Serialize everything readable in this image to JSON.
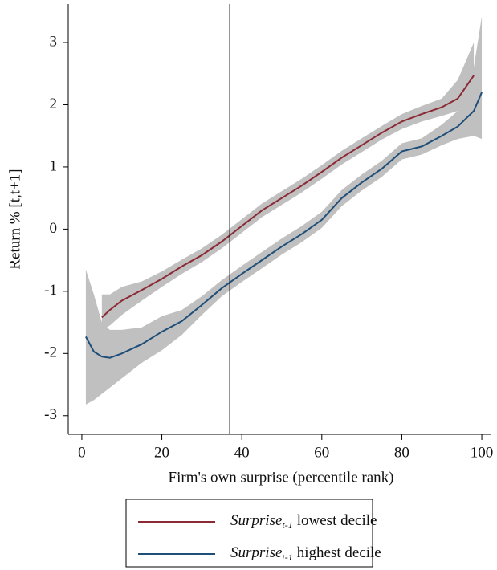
{
  "chart_data": {
    "type": "line",
    "xlabel": "Firm's own surprise (percentile rank)",
    "ylabel": "Return % [t,t+1]",
    "x": [
      1,
      3,
      5,
      7,
      10,
      15,
      20,
      25,
      30,
      35,
      40,
      45,
      50,
      55,
      60,
      65,
      70,
      75,
      80,
      85,
      90,
      94,
      98,
      100
    ],
    "series": [
      {
        "name": {
          "italic": "Surprise",
          "sub": "t-1",
          "rest": "lowest decile"
        },
        "color": "#8b2a35",
        "values": [
          null,
          null,
          -1.42,
          -1.3,
          -1.15,
          -0.98,
          -0.8,
          -0.6,
          -0.42,
          -0.2,
          0.05,
          0.3,
          0.5,
          0.7,
          0.92,
          1.15,
          1.35,
          1.55,
          1.73,
          1.85,
          1.96,
          2.1,
          2.47,
          null
        ],
        "lower": [
          null,
          null,
          -1.62,
          -1.55,
          -1.38,
          -1.15,
          -0.93,
          -0.72,
          -0.53,
          -0.31,
          -0.06,
          0.19,
          0.39,
          0.59,
          0.81,
          1.04,
          1.24,
          1.44,
          1.61,
          1.73,
          1.82,
          1.9,
          2.0,
          null
        ],
        "upper": [
          null,
          null,
          -1.05,
          -1.05,
          -0.93,
          -0.84,
          -0.68,
          -0.49,
          -0.31,
          -0.09,
          0.16,
          0.41,
          0.61,
          0.81,
          1.03,
          1.26,
          1.46,
          1.66,
          1.85,
          1.98,
          2.1,
          2.4,
          3.0,
          null
        ]
      },
      {
        "name": {
          "italic": "Surprise",
          "sub": "t-1",
          "rest": "highest decile"
        },
        "color": "#1f4e79",
        "values": [
          -1.73,
          -1.97,
          -2.05,
          -2.07,
          -2.0,
          -1.85,
          -1.65,
          -1.48,
          -1.22,
          -0.95,
          -0.72,
          -0.5,
          -0.28,
          -0.08,
          0.15,
          0.5,
          0.75,
          0.97,
          1.25,
          1.33,
          1.5,
          1.65,
          1.9,
          2.2
        ],
        "lower": [
          -2.82,
          -2.75,
          -2.65,
          -2.55,
          -2.4,
          -2.15,
          -1.95,
          -1.7,
          -1.38,
          -1.08,
          -0.85,
          -0.63,
          -0.41,
          -0.21,
          0.02,
          0.37,
          0.62,
          0.84,
          1.12,
          1.2,
          1.35,
          1.45,
          1.5,
          1.45
        ],
        "upper": [
          -0.65,
          -1.05,
          -1.5,
          -1.62,
          -1.62,
          -1.58,
          -1.4,
          -1.3,
          -1.08,
          -0.82,
          -0.59,
          -0.37,
          -0.15,
          0.05,
          0.28,
          0.63,
          0.88,
          1.1,
          1.38,
          1.46,
          1.68,
          1.9,
          2.6,
          3.42
        ]
      }
    ],
    "band_color": "#c0c0c0",
    "vline": 37,
    "xlim": [
      -3.4,
      102.4
    ],
    "xticks": [
      0,
      20,
      40,
      60,
      80,
      100
    ],
    "ylim": [
      -3.3,
      3.62
    ],
    "yticks": [
      -3,
      -2,
      -1,
      0,
      1,
      2,
      3
    ]
  }
}
